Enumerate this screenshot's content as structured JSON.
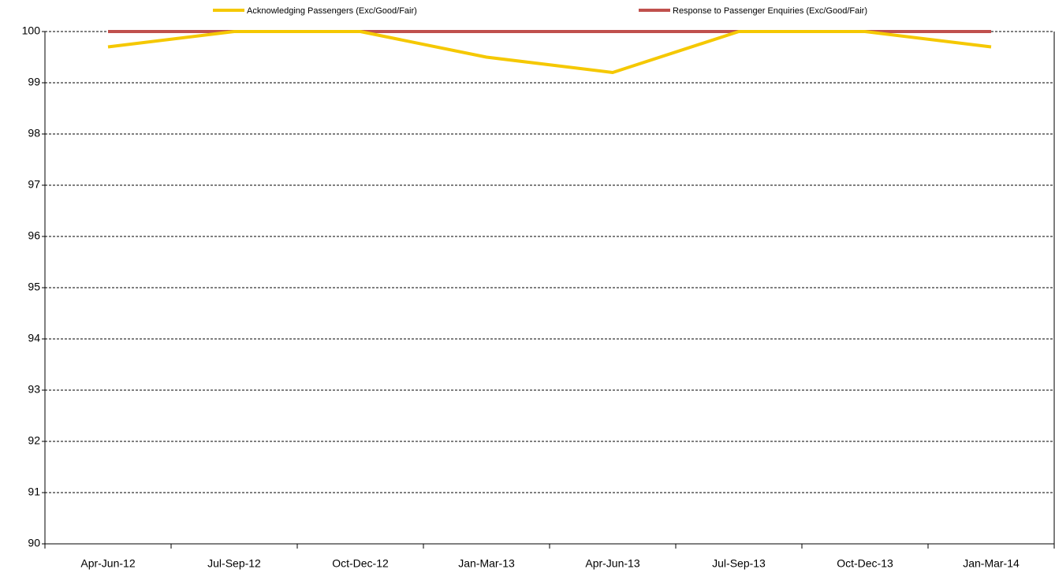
{
  "chart_data": {
    "type": "line",
    "categories": [
      "Apr-Jun-12",
      "Jul-Sep-12",
      "Oct-Dec-12",
      "Jan-Mar-13",
      "Apr-Jun-13",
      "Jul-Sep-13",
      "Oct-Dec-13",
      "Jan-Mar-14"
    ],
    "series": [
      {
        "name": "Acknowledging Passengers (Exc/Good/Fair)",
        "color": "#f5c800",
        "values": [
          99.7,
          100,
          100,
          99.5,
          99.2,
          100,
          100,
          99.7
        ]
      },
      {
        "name": "Response to Passenger Enquiries (Exc/Good/Fair)",
        "color": "#c0504d",
        "values": [
          100,
          100,
          100,
          100,
          100,
          100,
          100,
          100
        ]
      }
    ],
    "ylim": [
      90,
      100
    ],
    "yticks": [
      90,
      91,
      92,
      93,
      94,
      95,
      96,
      97,
      98,
      99,
      100
    ],
    "grid": true,
    "legend": "top"
  }
}
